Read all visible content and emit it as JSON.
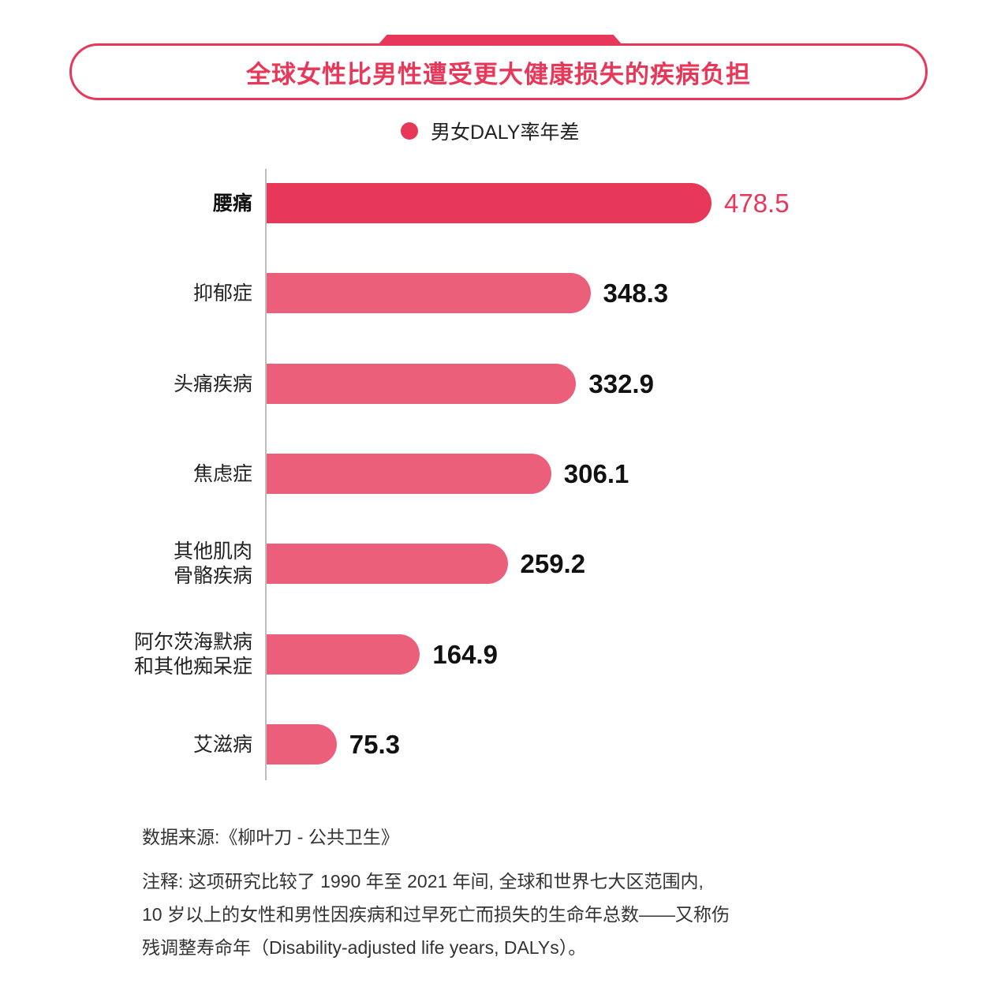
{
  "title": "全球女性比男性遭受更大健康损失的疾病负担",
  "legend": {
    "label": "男女DALY率年差",
    "color": "#e8385a"
  },
  "chart_data": {
    "type": "bar",
    "orientation": "horizontal",
    "title": "全球女性比男性遭受更大健康损失的疾病负担",
    "categories": [
      "腰痛",
      "抑郁症",
      "头痛疾病",
      "焦虑症",
      "其他肌肉骨骼疾病",
      "阿尔茨海默病和其他痴呆症",
      "艾滋病"
    ],
    "series": [
      {
        "name": "男女DALY率年差",
        "values": [
          478.5,
          348.3,
          332.9,
          306.1,
          259.2,
          164.9,
          75.3
        ]
      }
    ],
    "value_labels": [
      "478.5",
      "348.3",
      "332.9",
      "306.1",
      "259.2",
      "164.9",
      "75.3"
    ],
    "xlabel": "",
    "ylabel": "",
    "grid": false,
    "legend_position": "top",
    "colors": {
      "highlight": "#e8385a",
      "default": "#ec5f7a"
    }
  },
  "rows": [
    {
      "label": "腰痛",
      "value": "478.5",
      "num": 478.5,
      "highlight": true
    },
    {
      "label": "抑郁症",
      "value": "348.3",
      "num": 348.3
    },
    {
      "label": "头痛疾病",
      "value": "332.9",
      "num": 332.9
    },
    {
      "label": "焦虑症",
      "value": "306.1",
      "num": 306.1
    },
    {
      "label": "其他肌肉\n骨骼疾病",
      "value": "259.2",
      "num": 259.2
    },
    {
      "label": "阿尔茨海默病\n和其他痴呆症",
      "value": "164.9",
      "num": 164.9
    },
    {
      "label": "艾滋病",
      "value": "75.3",
      "num": 75.3
    }
  ],
  "footer": {
    "source": "数据来源:《柳叶刀 - 公共卫生》",
    "note_lines": [
      "注释: 这项研究比较了 1990 年至 2021 年间, 全球和世界七大区范围内,",
      "10 岁以上的女性和男性因疾病和过早死亡而损失的生命年总数——又称伤",
      "残调整寿命年（Disability-adjusted life years, DALYs）。"
    ]
  }
}
